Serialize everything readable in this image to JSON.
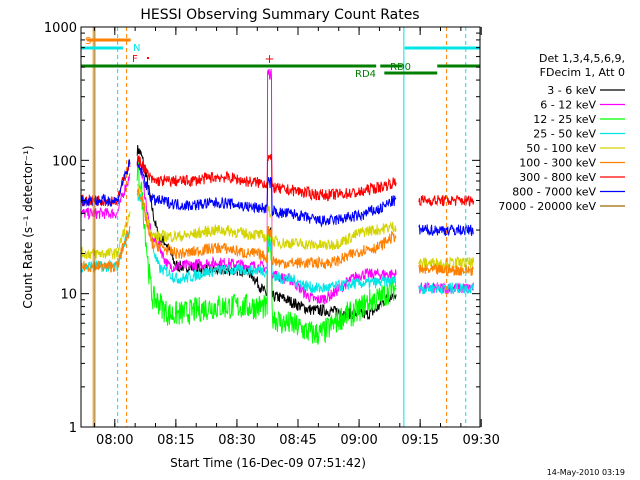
{
  "chart_data": {
    "type": "line",
    "title": "HESSI Observing Summary Count Rates",
    "xlabel": "Start Time (16-Dec-09 07:51:42)",
    "ylabel": "Count Rate (s⁻¹ detector⁻¹)",
    "yscale": "log",
    "ylim": [
      1,
      1000
    ],
    "xlim_minutes": [
      0,
      98
    ],
    "x_tick_labels": [
      "08:00",
      "08:15",
      "08:30",
      "08:45",
      "09:00",
      "09:15",
      "09:30"
    ],
    "y_tick_labels": [
      "1",
      "10",
      "100",
      "1000"
    ],
    "y_ticks": [
      1,
      10,
      100,
      1000
    ],
    "legend_header": [
      "Det 1,3,4,5,6,9,",
      "FDecim 1, Att 0"
    ],
    "footer_date": "14-May-2010 03:19",
    "flags": [
      {
        "label": "S",
        "color": "#ff7f00"
      },
      {
        "label": "N",
        "color": "#00e5e5"
      },
      {
        "label": "F",
        "color": "#ff0000"
      },
      {
        "label": "RD0",
        "color": "#007f00"
      },
      {
        "label": "RD4",
        "color": "#007f00"
      }
    ],
    "series": [
      {
        "name": "3 - 6 keV",
        "color": "#000000"
      },
      {
        "name": "6 - 12 keV",
        "color": "#ff00ff"
      },
      {
        "name": "12 - 25 keV",
        "color": "#00ff00"
      },
      {
        "name": "25 - 50 keV",
        "color": "#00e5e5"
      },
      {
        "name": "50 - 100 keV",
        "color": "#d4d400"
      },
      {
        "name": "100 - 300 keV",
        "color": "#ff7f00"
      },
      {
        "name": "300 - 800 keV",
        "color": "#ff0000"
      },
      {
        "name": "800 - 7000 keV",
        "color": "#0000ff"
      },
      {
        "name": "7000 - 20000 keV",
        "color": "#9a6a00"
      }
    ]
  }
}
